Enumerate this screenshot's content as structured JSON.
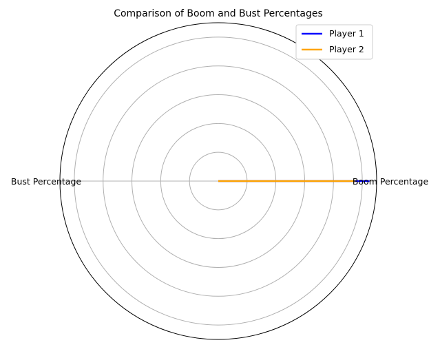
{
  "chart_data": {
    "type": "radar",
    "title": "Comparison of Boom and Bust Percentages",
    "axes": [
      "Boom Percentage",
      "Bust Percentage"
    ],
    "rmax": 1.1,
    "rgrid": [
      0.2,
      0.4,
      0.6,
      0.8,
      1.0
    ],
    "grid": true,
    "legend_placement": "top-right",
    "series": [
      {
        "name": "Player 1",
        "values": [
          1.05,
          0.0
        ],
        "color": "#0000ff"
      },
      {
        "name": "Player 2",
        "values": [
          0.95,
          0.0
        ],
        "color": "#ffa500"
      }
    ]
  }
}
